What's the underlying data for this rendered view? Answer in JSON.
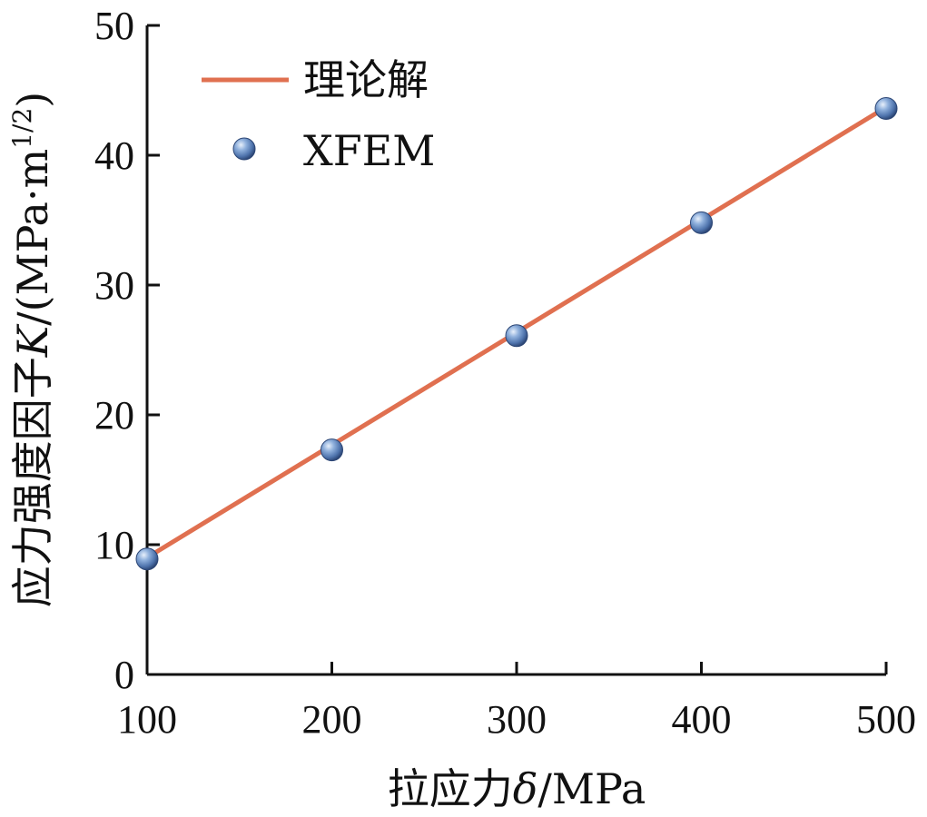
{
  "chart_data": {
    "type": "line",
    "xlabel": {
      "prefix": "拉应力",
      "symbol": "δ",
      "unit": "/MPa"
    },
    "ylabel": {
      "prefix": "应力强度因子",
      "symbol": "K",
      "unit": "/(MPa·m",
      "exponent": "1/2",
      "close": ")"
    },
    "xlim": [
      100,
      500
    ],
    "ylim": [
      0,
      50
    ],
    "xticks": [
      "100",
      "200",
      "300",
      "400",
      "500"
    ],
    "yticks": [
      "0",
      "10",
      "20",
      "30",
      "40",
      "50"
    ],
    "grid": false,
    "legend_position": "top-left",
    "series": [
      {
        "name": "理论解",
        "kind": "line",
        "color": "#e07050",
        "x": [
          100,
          500
        ],
        "y": [
          9.0,
          43.7
        ]
      },
      {
        "name": "XFEM",
        "kind": "scatter",
        "color": "#5a7fb5",
        "x": [
          100,
          200,
          300,
          400,
          500
        ],
        "y": [
          8.9,
          17.3,
          26.1,
          34.8,
          43.6
        ]
      }
    ]
  }
}
